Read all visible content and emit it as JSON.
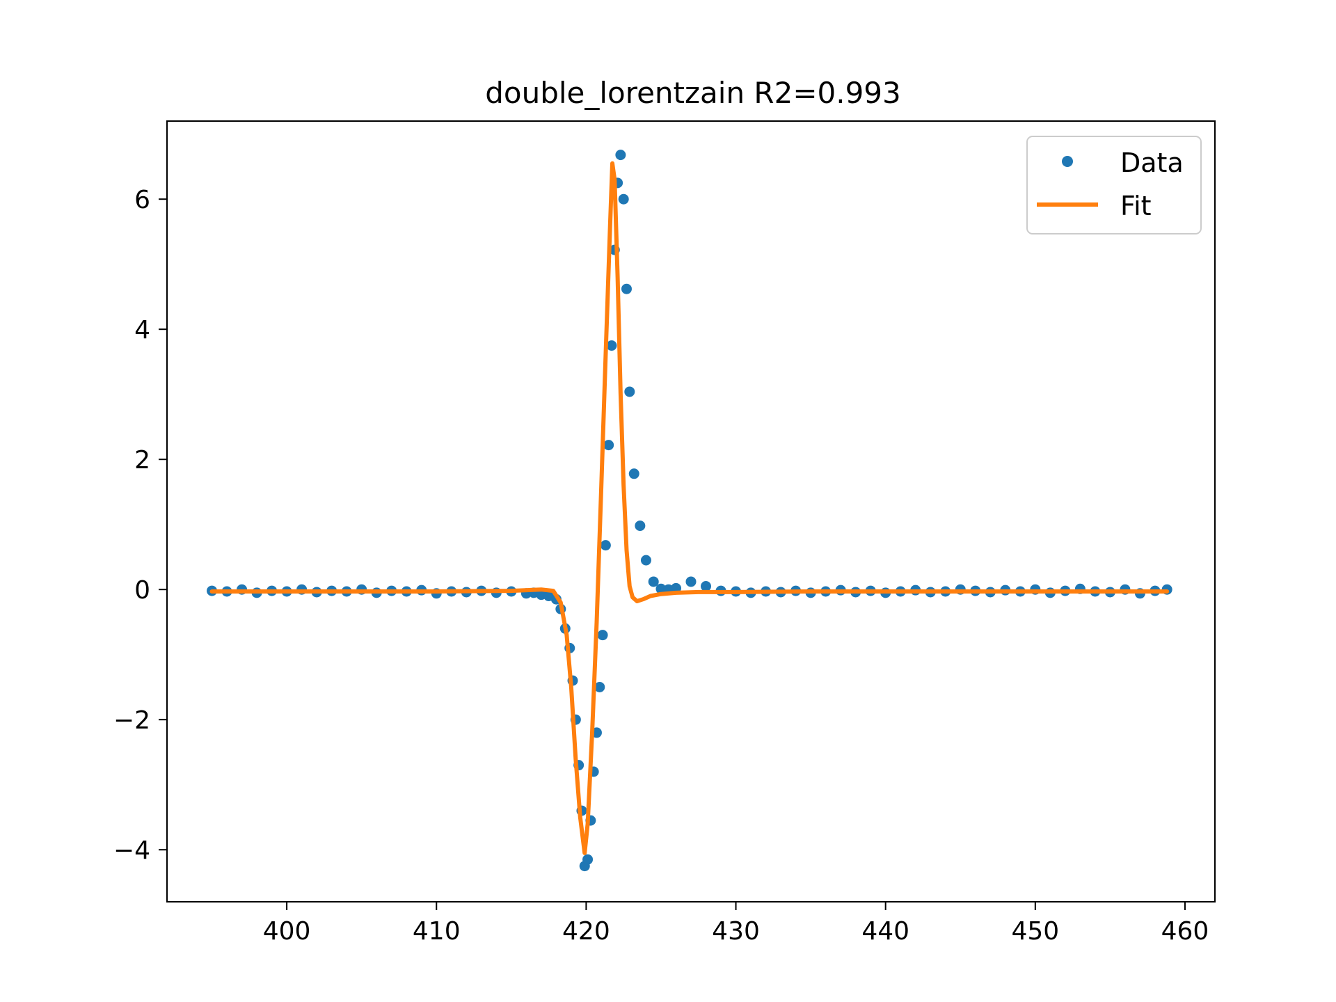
{
  "chart_data": {
    "type": "scatter",
    "title": "double_lorentzain R2=0.993",
    "xlabel": "",
    "ylabel": "",
    "xlim": [
      392,
      462
    ],
    "ylim": [
      -4.8,
      7.2
    ],
    "x_ticks": [
      400,
      410,
      420,
      430,
      440,
      450,
      460
    ],
    "y_ticks": [
      -4,
      -2,
      0,
      2,
      4,
      6
    ],
    "y_tick_labels": [
      "−4",
      "−2",
      "0",
      "2",
      "4",
      "6"
    ],
    "grid": false,
    "legend_position": "top-right",
    "series": [
      {
        "name": "Data",
        "style": "markers",
        "color": "#1f77b4",
        "x": [
          395.0,
          396.0,
          397.0,
          398.0,
          399.0,
          400.0,
          401.0,
          402.0,
          403.0,
          404.0,
          405.0,
          406.0,
          407.0,
          408.0,
          409.0,
          410.0,
          411.0,
          412.0,
          413.0,
          414.0,
          415.0,
          416.0,
          416.5,
          417.0,
          417.5,
          418.0,
          418.3,
          418.6,
          418.9,
          419.1,
          419.3,
          419.5,
          419.7,
          419.9,
          420.1,
          420.3,
          420.5,
          420.7,
          420.9,
          421.1,
          421.3,
          421.5,
          421.7,
          421.9,
          422.1,
          422.3,
          422.5,
          422.7,
          422.9,
          423.2,
          423.6,
          424.0,
          424.5,
          425.0,
          425.5,
          426.0,
          427.0,
          428.0,
          429.0,
          430.0,
          431.0,
          432.0,
          433.0,
          434.0,
          435.0,
          436.0,
          437.0,
          438.0,
          439.0,
          440.0,
          441.0,
          442.0,
          443.0,
          444.0,
          445.0,
          446.0,
          447.0,
          448.0,
          449.0,
          450.0,
          451.0,
          452.0,
          453.0,
          454.0,
          455.0,
          456.0,
          457.0,
          458.0,
          458.8
        ],
        "y": [
          -0.02,
          -0.03,
          0.0,
          -0.05,
          -0.02,
          -0.03,
          0.0,
          -0.04,
          -0.02,
          -0.03,
          0.0,
          -0.05,
          -0.02,
          -0.03,
          -0.01,
          -0.06,
          -0.03,
          -0.04,
          -0.02,
          -0.05,
          -0.03,
          -0.06,
          -0.05,
          -0.08,
          -0.1,
          -0.15,
          -0.3,
          -0.6,
          -0.9,
          -1.4,
          -2.0,
          -2.7,
          -3.4,
          -4.25,
          -4.15,
          -3.55,
          -2.8,
          -2.2,
          -1.5,
          -0.7,
          0.68,
          2.22,
          3.75,
          5.22,
          6.25,
          6.68,
          6.0,
          4.62,
          3.04,
          1.78,
          0.98,
          0.45,
          0.12,
          0.01,
          0.0,
          0.02,
          0.12,
          0.05,
          -0.02,
          -0.03,
          -0.05,
          -0.03,
          -0.04,
          -0.02,
          -0.05,
          -0.03,
          -0.01,
          -0.04,
          -0.02,
          -0.05,
          -0.03,
          -0.01,
          -0.04,
          -0.03,
          0.0,
          -0.02,
          -0.04,
          -0.01,
          -0.03,
          0.0,
          -0.05,
          -0.02,
          0.01,
          -0.03,
          -0.04,
          0.0,
          -0.06,
          -0.02,
          0.0
        ]
      },
      {
        "name": "Fit",
        "style": "line",
        "color": "#ff7f0e",
        "x": [
          395.0,
          400.0,
          405.0,
          410.0,
          415.0,
          417.0,
          417.8,
          418.3,
          418.7,
          419.0,
          419.3,
          419.6,
          419.9,
          420.1,
          420.4,
          420.7,
          421.0,
          421.3,
          421.6,
          421.75,
          421.9,
          422.1,
          422.3,
          422.5,
          422.7,
          422.9,
          423.1,
          423.4,
          423.8,
          424.3,
          425.0,
          426.0,
          427.5,
          430.0,
          435.0,
          440.0,
          445.0,
          450.0,
          455.0,
          458.8
        ],
        "y": [
          -0.03,
          -0.03,
          -0.03,
          -0.03,
          -0.02,
          0.0,
          -0.02,
          -0.2,
          -0.7,
          -1.5,
          -2.6,
          -3.5,
          -4.05,
          -3.6,
          -2.2,
          -0.5,
          1.5,
          3.6,
          5.6,
          6.55,
          6.3,
          4.8,
          3.0,
          1.6,
          0.6,
          0.05,
          -0.12,
          -0.18,
          -0.15,
          -0.1,
          -0.07,
          -0.05,
          -0.04,
          -0.04,
          -0.03,
          -0.03,
          -0.03,
          -0.03,
          -0.03,
          -0.03
        ]
      }
    ]
  }
}
